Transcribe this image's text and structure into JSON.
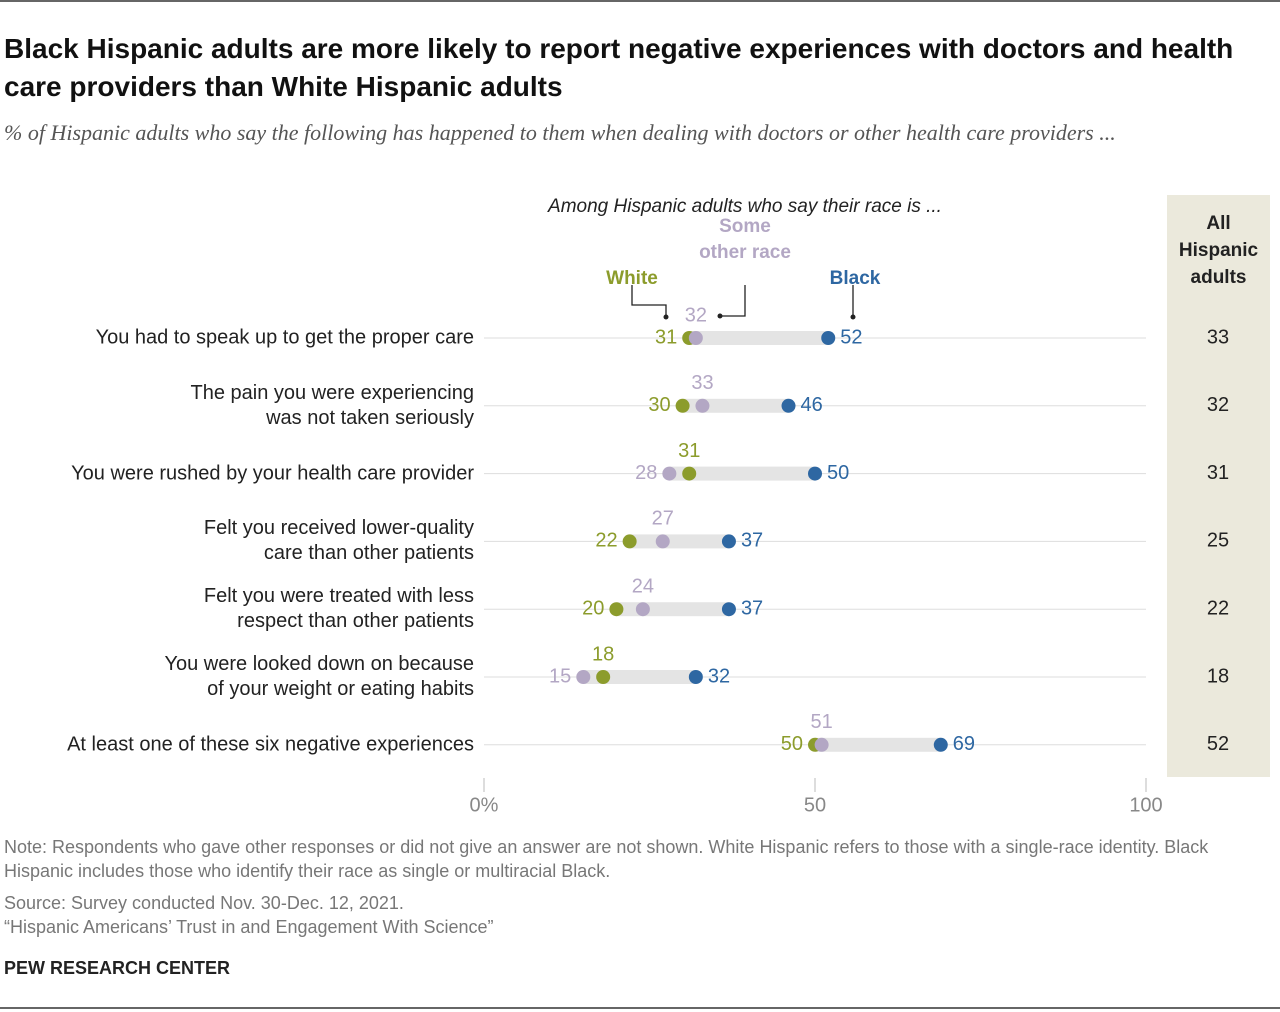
{
  "chart_data": {
    "type": "dot",
    "title": "Black Hispanic adults are more likely to report negative experiences with doctors and health care providers than White Hispanic adults",
    "subtitle": "% of Hispanic adults who say the following has happened to them when dealing with doctors or other health care providers ...",
    "legend_title": "Among Hispanic adults who say their race is ...",
    "categories": [
      "You had to speak up to get the proper care",
      "The pain you were experiencing\nwas not taken seriously",
      "You were rushed by your health care provider",
      "Felt you received lower-quality\ncare than other patients",
      "Felt you were treated with less\nrespect than other patients",
      "You were looked down on because\nof your weight or eating habits",
      "At least one of these six negative experiences"
    ],
    "series": [
      {
        "name": "White",
        "color": "#8c9c2c",
        "values": [
          31,
          30,
          31,
          22,
          20,
          18,
          50
        ]
      },
      {
        "name": "Some\nother race",
        "color": "#b3a7c4",
        "values": [
          32,
          33,
          28,
          27,
          24,
          15,
          51
        ]
      },
      {
        "name": "Black",
        "color": "#2e67a2",
        "values": [
          52,
          46,
          50,
          37,
          37,
          32,
          69
        ]
      }
    ],
    "total_column": {
      "name": "All\nHispanic\nadults",
      "values": [
        33,
        32,
        31,
        25,
        22,
        18,
        52
      ]
    },
    "xlim": [
      0,
      100
    ],
    "xticks": [
      {
        "value": 0,
        "label": "0%"
      },
      50,
      100
    ]
  },
  "footer": {
    "note": "Note: Respondents who gave other responses or did not give an answer are not shown. White Hispanic refers to those with a single-race identity. Black Hispanic includes those who identify their race as single or multiracial Black.",
    "source": "Source: Survey conducted Nov. 30-Dec. 12, 2021.",
    "report": "“Hispanic Americans’ Trust in and Engagement With Science”",
    "credit": "PEW RESEARCH CENTER"
  }
}
